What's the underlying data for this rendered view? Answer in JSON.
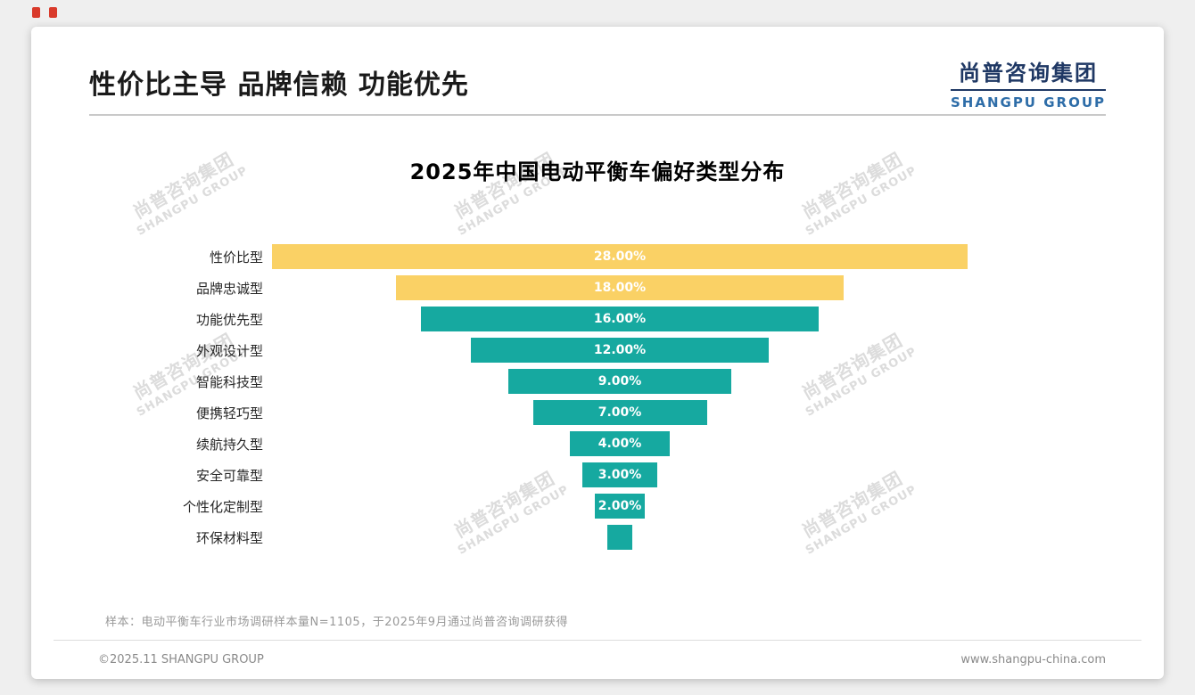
{
  "page": {
    "header_title": "性价比主导 品牌信赖 功能优先",
    "logo": {
      "cn": "尚普咨询集团",
      "en": "SHANGPU GROUP"
    },
    "watermark": {
      "cn": "尚普咨询集团",
      "en": "SHANGPU GROUP"
    },
    "footnote": "样本：电动平衡车行业市场调研样本量N=1105，于2025年9月通过尚普咨询调研获得",
    "footer_left": "©2025.11 SHANGPU GROUP",
    "footer_right": "www.shangpu-china.com"
  },
  "chart_data": {
    "type": "bar",
    "subtype": "centered-funnel",
    "orientation": "horizontal",
    "alignment": "center",
    "title": "2025年中国电动平衡车偏好类型分布",
    "categories": [
      "性价比型",
      "品牌忠诚型",
      "功能优先型",
      "外观设计型",
      "智能科技型",
      "便携轻巧型",
      "续航持久型",
      "安全可靠型",
      "个性化定制型",
      "环保材料型"
    ],
    "values": [
      28,
      18,
      16,
      12,
      9,
      7,
      4,
      3,
      2,
      1
    ],
    "value_labels": [
      "28.00%",
      "18.00%",
      "16.00%",
      "12.00%",
      "9.00%",
      "7.00%",
      "4.00%",
      "3.00%",
      "2.00%",
      ""
    ],
    "bar_colors": [
      "#FAD165",
      "#FAD165",
      "#16A9A0",
      "#16A9A0",
      "#16A9A0",
      "#16A9A0",
      "#16A9A0",
      "#16A9A0",
      "#16A9A0",
      "#16A9A0"
    ],
    "unit": "%",
    "xlim": [
      0,
      28
    ],
    "grid": false,
    "legend": false
  },
  "colors": {
    "accent_yellow": "#FAD165",
    "accent_teal": "#16A9A0",
    "logo_navy": "#1F3864",
    "logo_blue": "#2E6DA8",
    "watermark_gray": "#D9D9D9"
  }
}
